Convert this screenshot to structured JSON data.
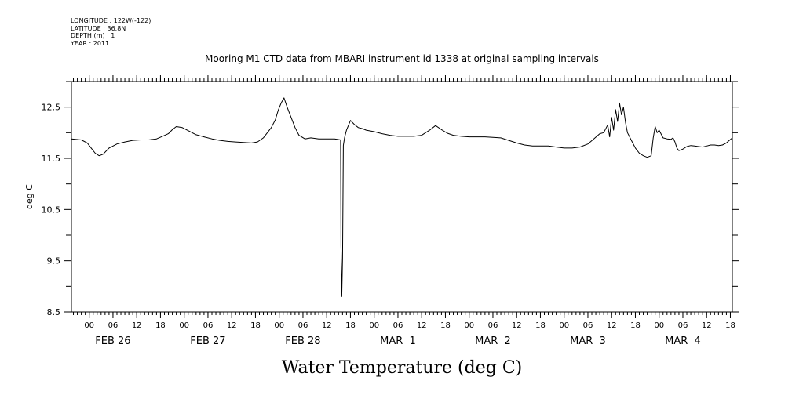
{
  "meta": {
    "longitude": "LONGITUDE : 122W(-122)",
    "latitude": "LATITUDE : 36.8N",
    "depth": "DEPTH (m) : 1",
    "year": "YEAR : 2011"
  },
  "chart_data": {
    "type": "line",
    "title": "Mooring M1 CTD data from MBARI instrument id 1338 at original sampling intervals",
    "xlabel": "Water Temperature (deg C)",
    "ylabel": "deg C",
    "ylim": [
      8.5,
      13.0
    ],
    "yticks": [
      8.5,
      9.5,
      10.5,
      11.5,
      12.5
    ],
    "ytick_labels": [
      "8.5",
      "9.5",
      "10.5",
      "11.5",
      "12.5"
    ],
    "xlim_hours": [
      -4.5,
      162.5
    ],
    "hour_ticks": [
      0,
      6,
      12,
      18,
      24,
      30,
      36,
      42,
      48,
      54,
      60,
      66,
      72,
      78,
      84,
      90,
      96,
      102,
      108,
      114,
      120,
      126,
      132,
      138,
      144,
      150,
      156,
      162
    ],
    "hour_tick_labels": [
      "00",
      "06",
      "12",
      "18",
      "00",
      "06",
      "12",
      "18",
      "00",
      "06",
      "12",
      "18",
      "00",
      "06",
      "12",
      "18",
      "00",
      "06",
      "12",
      "18",
      "00",
      "06",
      "12",
      "18",
      "00",
      "06",
      "12",
      "18"
    ],
    "day_labels": [
      {
        "hour": 6,
        "label": "FEB 26"
      },
      {
        "hour": 30,
        "label": "FEB 27"
      },
      {
        "hour": 54,
        "label": "FEB 28"
      },
      {
        "hour": 78,
        "label": "MAR  1"
      },
      {
        "hour": 102,
        "label": "MAR  2"
      },
      {
        "hour": 126,
        "label": "MAR  3"
      },
      {
        "hour": 150,
        "label": "MAR  4"
      }
    ],
    "series": [
      {
        "x": [
          -4.5,
          -2,
          -0.5,
          0.5,
          1.5,
          2.5,
          3.5,
          5,
          7,
          9,
          11,
          13,
          15,
          17,
          18.5,
          20,
          21,
          22,
          23.5,
          25,
          27,
          29,
          31,
          33,
          35,
          37,
          39,
          41,
          42.5,
          44,
          45,
          46,
          47,
          47.8,
          48.5,
          49.2,
          50,
          51,
          52,
          53,
          54.5,
          56,
          58,
          60,
          62,
          63.5,
          63.6,
          63.8,
          64,
          64.2,
          64.5,
          65,
          66,
          67,
          68,
          69,
          70,
          72,
          74,
          76,
          78,
          80,
          82,
          84,
          86,
          87.5,
          89,
          90.5,
          92,
          94,
          96,
          98,
          100,
          102,
          104,
          106,
          108,
          110,
          112,
          114,
          116,
          118,
          120,
          122,
          124,
          126,
          127.5,
          129,
          130,
          131,
          131.5,
          132,
          132.5,
          133,
          133.5,
          134,
          134.5,
          135,
          135.5,
          136,
          137,
          138,
          139,
          140,
          141,
          142,
          142.5,
          143,
          143.5,
          144,
          145,
          146,
          147,
          147.5,
          148,
          148.5,
          149,
          150,
          151,
          152,
          153,
          154,
          155,
          156,
          157,
          158,
          159,
          160,
          161,
          162.5
        ],
        "y": [
          11.88,
          11.86,
          11.8,
          11.7,
          11.6,
          11.55,
          11.58,
          11.7,
          11.78,
          11.82,
          11.85,
          11.86,
          11.86,
          11.88,
          11.93,
          11.98,
          12.06,
          12.12,
          12.1,
          12.04,
          11.96,
          11.92,
          11.88,
          11.85,
          11.83,
          11.82,
          11.81,
          11.8,
          11.82,
          11.9,
          12.0,
          12.1,
          12.25,
          12.45,
          12.58,
          12.68,
          12.5,
          12.3,
          12.1,
          11.95,
          11.88,
          11.9,
          11.88,
          11.88,
          11.88,
          11.86,
          9.8,
          8.8,
          9.55,
          11.75,
          11.9,
          12.05,
          12.24,
          12.16,
          12.1,
          12.08,
          12.05,
          12.02,
          11.98,
          11.95,
          11.93,
          11.93,
          11.93,
          11.95,
          12.05,
          12.14,
          12.06,
          11.99,
          11.95,
          11.93,
          11.92,
          11.92,
          11.92,
          11.91,
          11.9,
          11.85,
          11.8,
          11.76,
          11.74,
          11.74,
          11.74,
          11.72,
          11.7,
          11.7,
          11.72,
          11.78,
          11.88,
          11.98,
          12.0,
          12.15,
          11.92,
          12.3,
          12.05,
          12.45,
          12.22,
          12.58,
          12.35,
          12.5,
          12.2,
          12.0,
          11.85,
          11.7,
          11.6,
          11.55,
          11.52,
          11.55,
          11.9,
          12.12,
          12.0,
          12.05,
          11.9,
          11.88,
          11.87,
          11.9,
          11.82,
          11.7,
          11.65,
          11.68,
          11.73,
          11.75,
          11.74,
          11.73,
          11.72,
          11.74,
          11.76,
          11.76,
          11.75,
          11.76,
          11.8,
          11.9
        ]
      }
    ]
  }
}
